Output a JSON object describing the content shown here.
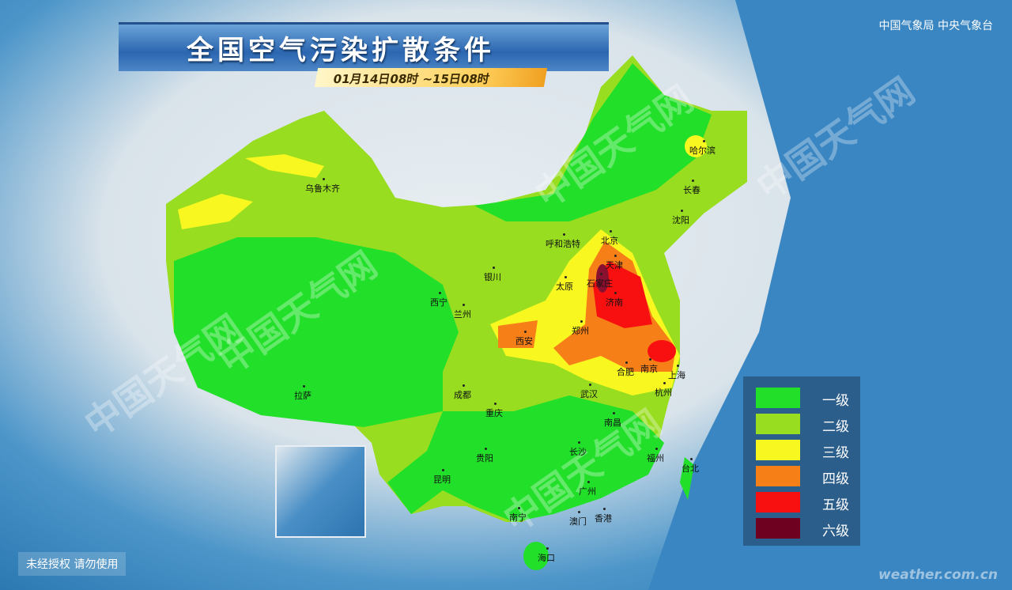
{
  "header": {
    "title": "全国空气污染扩散条件",
    "date_range": "01月14日08时 ~15日08时",
    "agency": "中国气象局 中央气象台"
  },
  "legend": {
    "items": [
      {
        "label": "一级",
        "color": "#22e02a"
      },
      {
        "label": "二级",
        "color": "#98dd20"
      },
      {
        "label": "三级",
        "color": "#f8f820"
      },
      {
        "label": "四级",
        "color": "#f77f18"
      },
      {
        "label": "五级",
        "color": "#f81010"
      },
      {
        "label": "六级",
        "color": "#6e0020"
      }
    ]
  },
  "cities": [
    {
      "name": "乌鲁木齐",
      "level": 3
    },
    {
      "name": "哈尔滨",
      "level": 3
    },
    {
      "name": "长春",
      "level": 2
    },
    {
      "name": "沈阳",
      "level": 3
    },
    {
      "name": "呼和浩特",
      "level": 2
    },
    {
      "name": "北京",
      "level": 4
    },
    {
      "name": "天津",
      "level": 5
    },
    {
      "name": "石家庄",
      "level": 6
    },
    {
      "name": "太原",
      "level": 3
    },
    {
      "name": "银川",
      "level": 2
    },
    {
      "name": "西宁",
      "level": 3
    },
    {
      "name": "兰州",
      "level": 2
    },
    {
      "name": "济南",
      "level": 5
    },
    {
      "name": "郑州",
      "level": 3
    },
    {
      "name": "西安",
      "level": 4
    },
    {
      "name": "合肥",
      "level": 3
    },
    {
      "name": "南京",
      "level": 5
    },
    {
      "name": "上海",
      "level": 4
    },
    {
      "name": "武汉",
      "level": 3
    },
    {
      "name": "杭州",
      "level": 2
    },
    {
      "name": "成都",
      "level": 2
    },
    {
      "name": "重庆",
      "level": 2
    },
    {
      "name": "拉萨",
      "level": 1
    },
    {
      "name": "南昌",
      "level": 2
    },
    {
      "name": "长沙",
      "level": 1
    },
    {
      "name": "福州",
      "level": 1
    },
    {
      "name": "贵阳",
      "level": 1
    },
    {
      "name": "昆明",
      "level": 1
    },
    {
      "name": "台北",
      "level": 1
    },
    {
      "name": "广州",
      "level": 1
    },
    {
      "name": "南宁",
      "level": 1
    },
    {
      "name": "澳门",
      "level": 1
    },
    {
      "name": "香港",
      "level": 1
    },
    {
      "name": "海口",
      "level": 1
    }
  ],
  "watermark": "中国天气网",
  "footer": {
    "notice": "未经授权 请勿使用",
    "site": "weather.com.cn"
  }
}
